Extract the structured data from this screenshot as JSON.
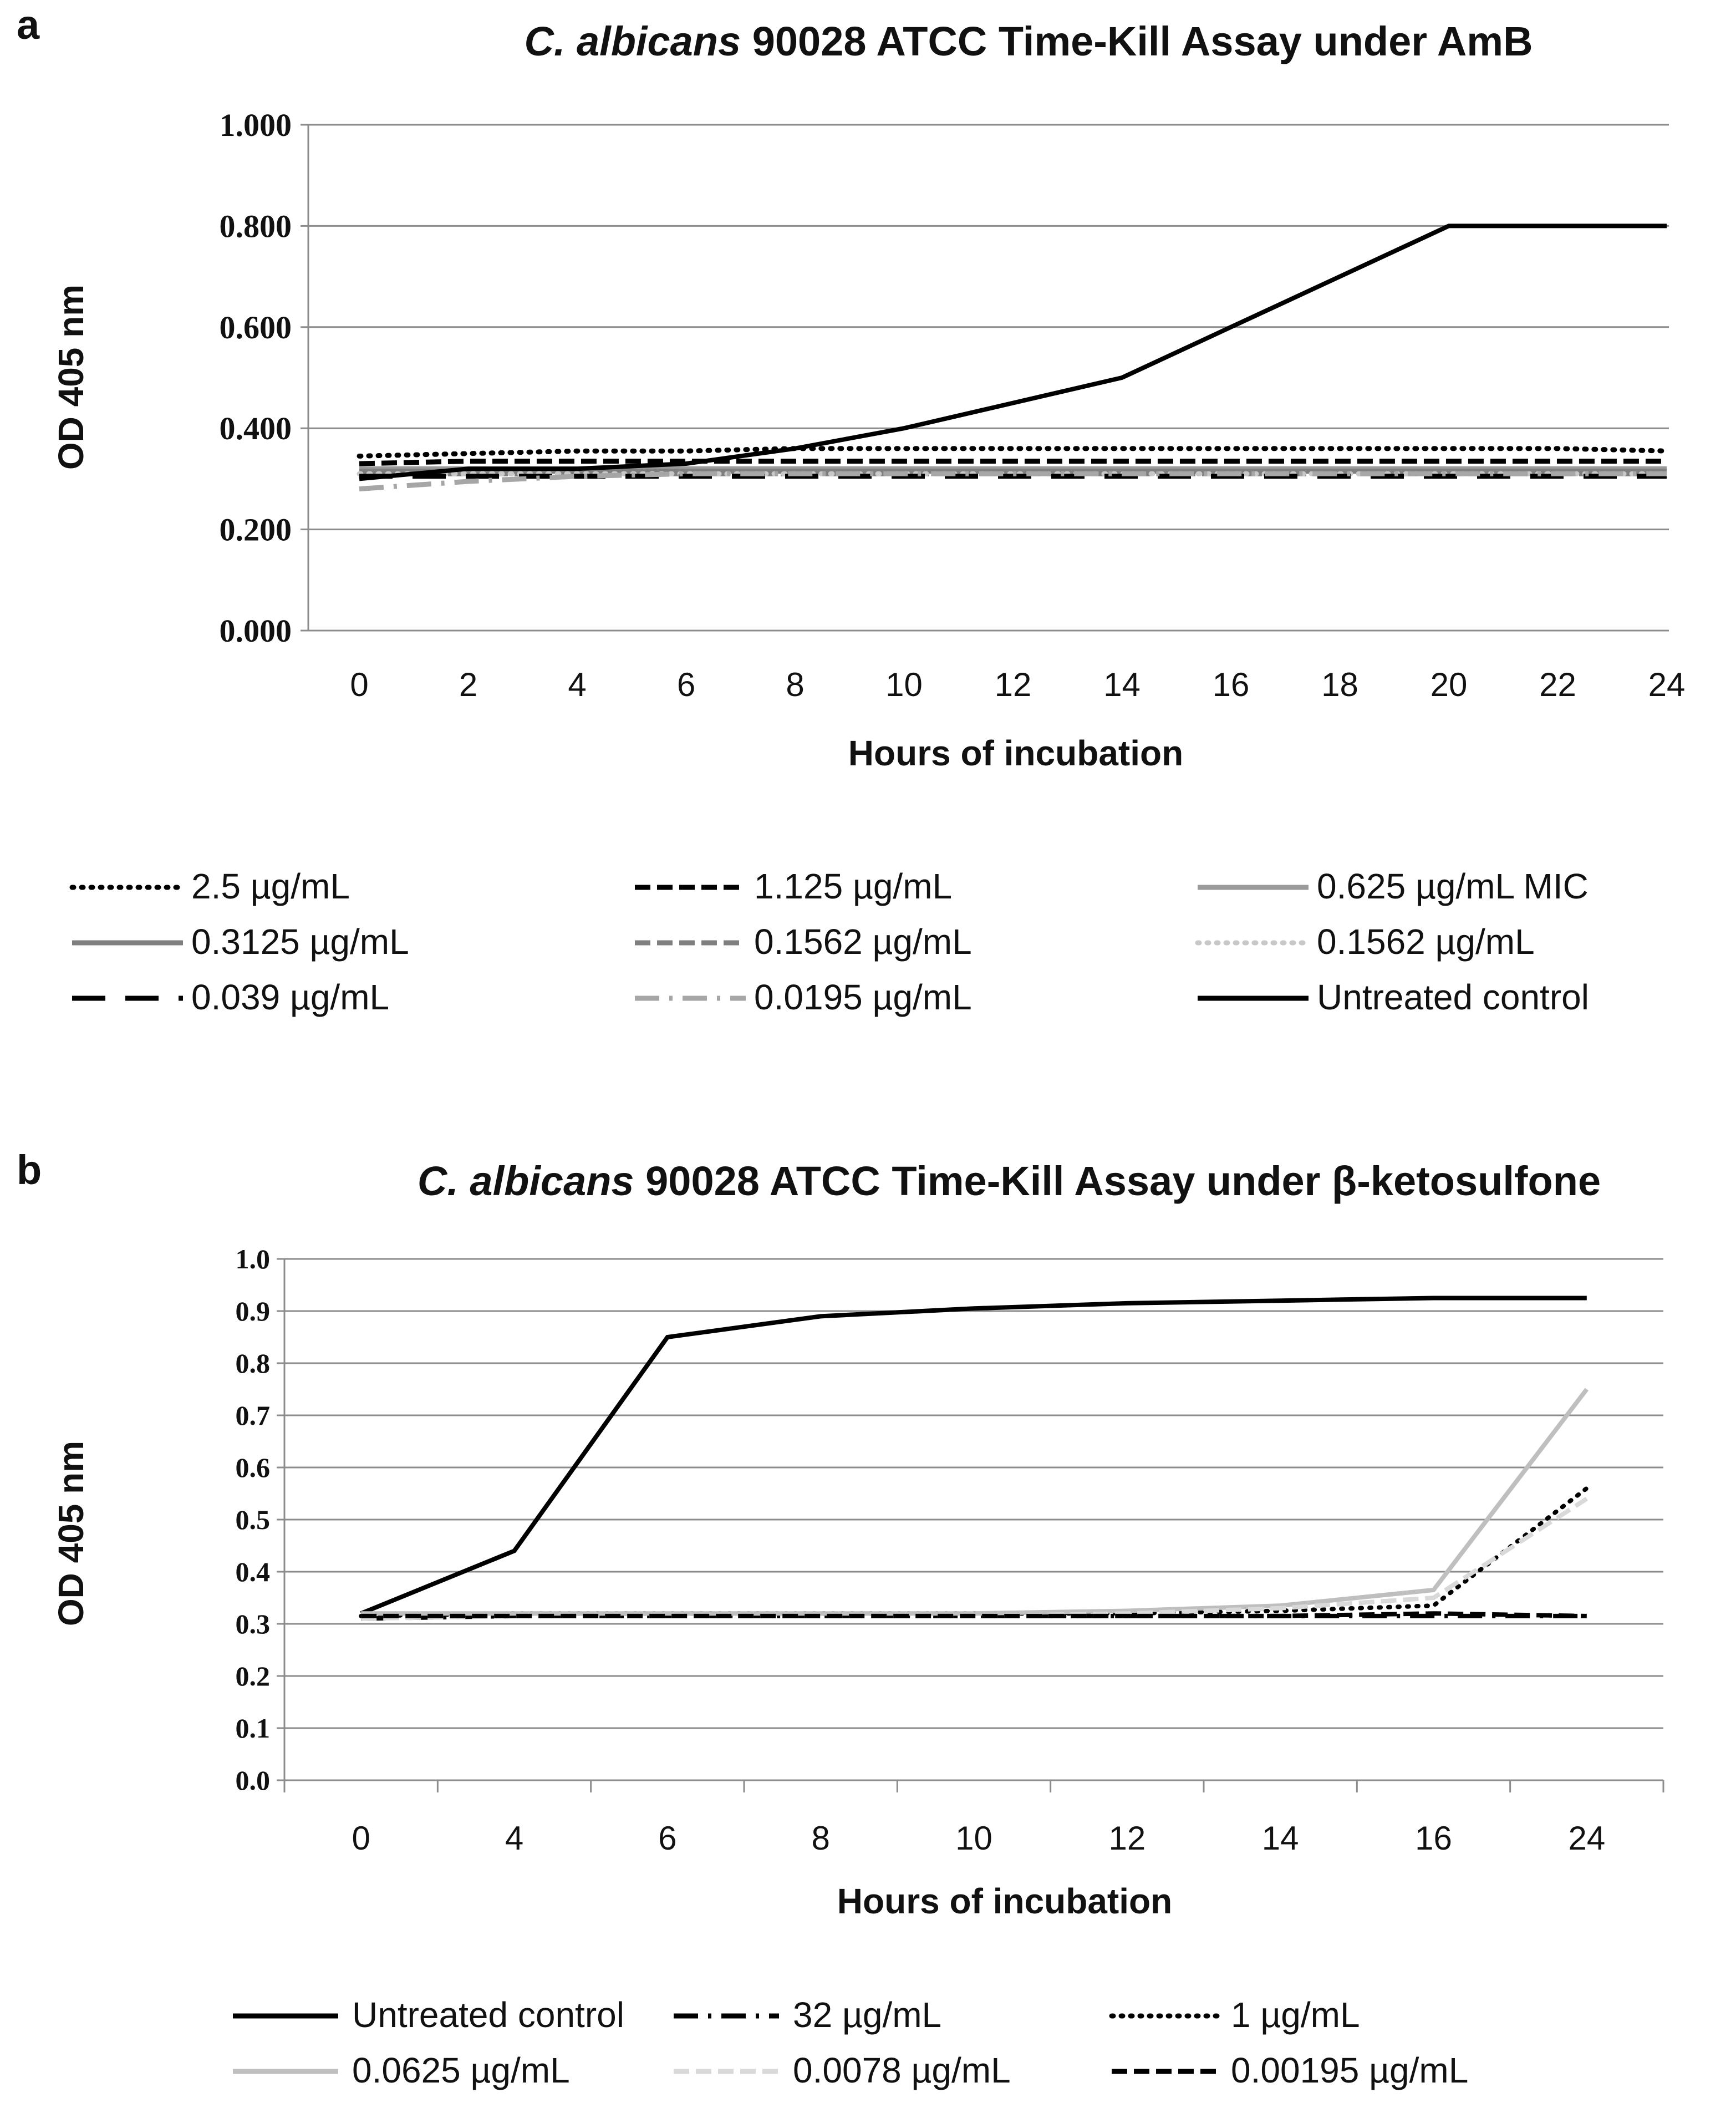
{
  "chart_data": [
    {
      "panel": "a",
      "type": "line",
      "title": "C. albicans 90028 ATCC Time-Kill Assay under AmB",
      "title_italic_part": "C. albicans",
      "title_rest": " 90028 ATCC Time-Kill Assay under AmB",
      "xlabel": "Hours of incubation",
      "ylabel": "OD 405 nm",
      "ylim": [
        0,
        1
      ],
      "y_ticks": [
        "0.000",
        "0.200",
        "0.400",
        "0.600",
        "0.800",
        "1.000"
      ],
      "x": [
        0,
        2,
        4,
        6,
        8,
        10,
        12,
        14,
        16,
        18,
        20,
        22,
        24
      ],
      "grid": true,
      "legend_position": "bottom",
      "series": [
        {
          "name": "2.5 µg/mL",
          "color": "#000000",
          "style": "dotted",
          "values": [
            0.345,
            0.35,
            0.355,
            0.355,
            0.36,
            0.36,
            0.36,
            0.36,
            0.36,
            0.36,
            0.36,
            0.36,
            0.355
          ]
        },
        {
          "name": "1.125 µg/mL",
          "color": "#000000",
          "style": "dashed",
          "values": [
            0.33,
            0.335,
            0.335,
            0.335,
            0.335,
            0.335,
            0.335,
            0.335,
            0.335,
            0.335,
            0.335,
            0.335,
            0.335
          ]
        },
        {
          "name": "0.625 µg/mL MIC",
          "color": "#9a9a9a",
          "style": "solid",
          "values": [
            0.32,
            0.32,
            0.32,
            0.32,
            0.32,
            0.32,
            0.32,
            0.32,
            0.32,
            0.32,
            0.32,
            0.32,
            0.32
          ]
        },
        {
          "name": "0.3125 µg/mL",
          "color": "#7f7f7f",
          "style": "solid",
          "values": [
            0.315,
            0.315,
            0.315,
            0.315,
            0.315,
            0.315,
            0.315,
            0.315,
            0.315,
            0.315,
            0.315,
            0.315,
            0.315
          ]
        },
        {
          "name": "0.1562 µg/mL",
          "color": "#7f7f7f",
          "style": "dashed",
          "values": [
            0.31,
            0.31,
            0.31,
            0.31,
            0.31,
            0.31,
            0.31,
            0.31,
            0.31,
            0.31,
            0.31,
            0.31,
            0.31
          ]
        },
        {
          "name": "0.1562 µg/mL",
          "color": "#c8c8c8",
          "style": "dotted",
          "values": [
            0.31,
            0.31,
            0.31,
            0.31,
            0.31,
            0.31,
            0.31,
            0.31,
            0.31,
            0.31,
            0.31,
            0.31,
            0.31
          ]
        },
        {
          "name": "0.039 µg/mL",
          "color": "#000000",
          "style": "longdash",
          "values": [
            0.305,
            0.305,
            0.305,
            0.305,
            0.305,
            0.305,
            0.305,
            0.305,
            0.305,
            0.305,
            0.305,
            0.305,
            0.305
          ]
        },
        {
          "name": "0.0195 µg/mL",
          "color": "#a6a6a6",
          "style": "dashdot",
          "values": [
            0.28,
            0.295,
            0.305,
            0.31,
            0.31,
            0.31,
            0.31,
            0.31,
            0.31,
            0.31,
            0.31,
            0.31,
            0.31
          ]
        },
        {
          "name": "Untreated control",
          "color": "#000000",
          "style": "solid",
          "values": [
            0.3,
            0.32,
            0.32,
            0.33,
            0.36,
            0.4,
            0.45,
            0.5,
            0.6,
            0.7,
            0.8,
            0.8,
            0.8
          ]
        }
      ]
    },
    {
      "panel": "b",
      "type": "line",
      "title": "C. albicans 90028 ATCC Time-Kill Assay under β-ketosulfone",
      "title_italic_part": "C. albicans",
      "title_rest": " 90028 ATCC Time-Kill Assay under β-ketosulfone",
      "xlabel": "Hours of incubation",
      "ylabel": "OD 405 nm",
      "ylim": [
        0,
        1
      ],
      "y_ticks": [
        "0.0",
        "0.1",
        "0.2",
        "0.3",
        "0.4",
        "0.5",
        "0.6",
        "0.7",
        "0.8",
        "0.9",
        "1.0"
      ],
      "categories": [
        "0",
        "4",
        "6",
        "8",
        "10",
        "12",
        "14",
        "16",
        "24"
      ],
      "grid": true,
      "legend_position": "bottom",
      "series": [
        {
          "name": "Untreated control",
          "color": "#000000",
          "style": "solid",
          "values": [
            0.32,
            0.44,
            0.85,
            0.89,
            0.905,
            0.915,
            0.92,
            0.925,
            0.925
          ]
        },
        {
          "name": "32 µg/mL",
          "color": "#000000",
          "style": "dashdot",
          "values": [
            0.31,
            0.315,
            0.315,
            0.315,
            0.315,
            0.315,
            0.315,
            0.315,
            0.315
          ]
        },
        {
          "name": "1 µg/mL",
          "color": "#000000",
          "style": "dotted",
          "values": [
            0.315,
            0.32,
            0.32,
            0.32,
            0.32,
            0.32,
            0.325,
            0.335,
            0.56
          ]
        },
        {
          "name": "0.0625 µg/mL",
          "color": "#bfbfbf",
          "style": "solid",
          "values": [
            0.32,
            0.32,
            0.32,
            0.32,
            0.32,
            0.325,
            0.335,
            0.365,
            0.75
          ]
        },
        {
          "name": "0.0078 µg/mL",
          "color": "#d9d9d9",
          "style": "dashed",
          "values": [
            0.31,
            0.315,
            0.315,
            0.315,
            0.315,
            0.32,
            0.33,
            0.35,
            0.54
          ]
        },
        {
          "name": "0.00195 µg/mL",
          "color": "#000000",
          "style": "dashed",
          "values": [
            0.315,
            0.315,
            0.315,
            0.315,
            0.315,
            0.315,
            0.315,
            0.32,
            0.315
          ]
        }
      ]
    }
  ]
}
